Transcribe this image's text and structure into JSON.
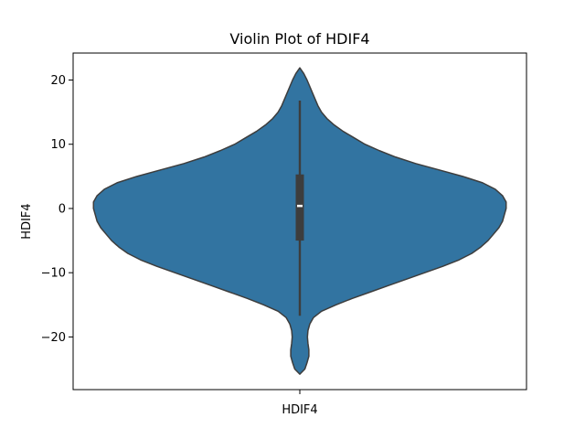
{
  "chart_data": {
    "type": "violin",
    "title": "Violin Plot of HDIF4",
    "xlabel": "HDIF4",
    "ylabel": "HDIF4",
    "categories": [
      "HDIF4"
    ],
    "ylim": [
      -28.2,
      24.2
    ],
    "yticks": [
      -20,
      -10,
      0,
      10,
      20
    ],
    "grid": false,
    "colors": {
      "violin": "#3274a1",
      "outline": "#3d3d3d",
      "box": "#3d3d3d",
      "median": "#ffffff"
    },
    "density": {
      "y": [
        -25.8,
        -25.0,
        -24.0,
        -23.0,
        -22.0,
        -21.0,
        -20.0,
        -19.0,
        -18.0,
        -17.0,
        -16.0,
        -15.0,
        -14.0,
        -13.0,
        -12.0,
        -11.0,
        -10.0,
        -9.0,
        -8.0,
        -7.0,
        -6.0,
        -5.0,
        -4.0,
        -3.0,
        -2.0,
        -1.0,
        0.0,
        1.0,
        2.0,
        3.0,
        4.0,
        5.0,
        6.0,
        7.0,
        8.0,
        9.0,
        10.0,
        11.0,
        12.0,
        13.0,
        14.0,
        15.0,
        16.0,
        17.0,
        18.0,
        19.0,
        20.0,
        21.0,
        21.9
      ],
      "width": [
        0.0,
        0.028,
        0.04,
        0.05,
        0.05,
        0.045,
        0.042,
        0.045,
        0.055,
        0.075,
        0.12,
        0.2,
        0.29,
        0.39,
        0.49,
        0.59,
        0.69,
        0.79,
        0.88,
        0.95,
        1.0,
        1.04,
        1.07,
        1.1,
        1.12,
        1.13,
        1.14,
        1.14,
        1.12,
        1.08,
        1.01,
        0.9,
        0.77,
        0.64,
        0.53,
        0.44,
        0.36,
        0.3,
        0.24,
        0.19,
        0.15,
        0.12,
        0.1,
        0.085,
        0.07,
        0.055,
        0.04,
        0.022,
        0.0
      ]
    },
    "box": {
      "q1": -5.0,
      "median": 0.4,
      "q3": 5.3,
      "whisker_low": -16.7,
      "whisker_high": 16.8
    }
  }
}
